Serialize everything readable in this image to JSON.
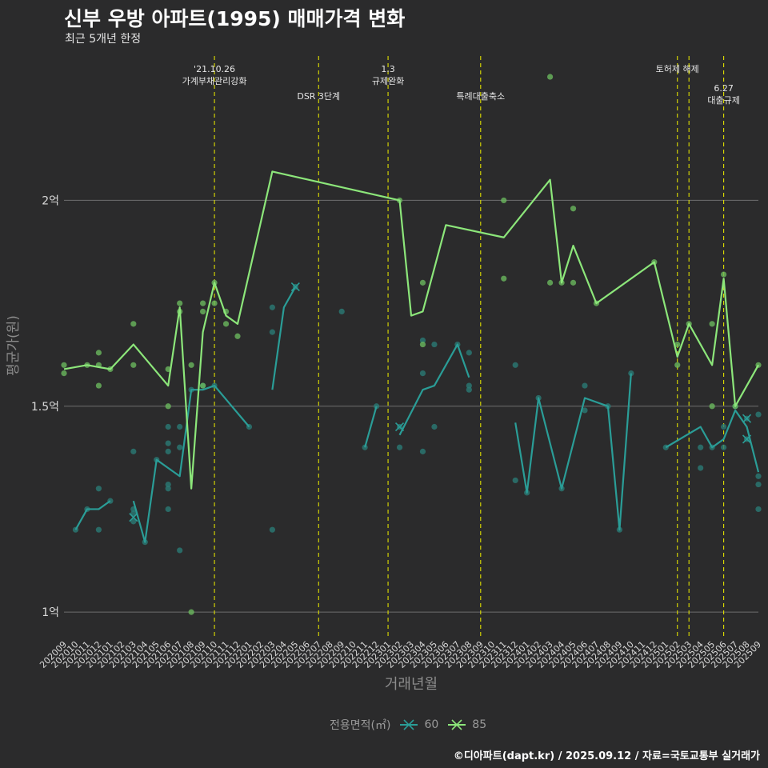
{
  "title": "신부 우방 아파트(1995) 매매가격 변화",
  "subtitle": "최근 5개년 한정",
  "caption": "©디아파트(dapt.kr) / 2025.09.12 / 자료=국토교통부 실거래가",
  "colors": {
    "background": "#2b2b2c",
    "grid": "#6e6e6e",
    "event_line": "#e0e000",
    "s60": "#2a9d97",
    "s60_point": "#2a7a76",
    "s85": "#8ce67a",
    "s85_point": "#6ab85e",
    "axis_text": "#d9d9d9",
    "axis_title": "#8c8c8c"
  },
  "chart_data": {
    "type": "line",
    "xlabel": "거래년월",
    "ylabel": "평균가(원)",
    "ylim": [
      0.94,
      2.37
    ],
    "y_ticks": [
      {
        "value": 1.0,
        "label": "1억"
      },
      {
        "value": 1.5,
        "label": "1.5억"
      },
      {
        "value": 2.0,
        "label": "2억"
      }
    ],
    "grid": "horizontal",
    "legend_position": "bottom",
    "legend_title": "전용면적(㎡)",
    "categories": [
      "202009",
      "202010",
      "202011",
      "202012",
      "202101",
      "202102",
      "202103",
      "202104",
      "202105",
      "202106",
      "202107",
      "202108",
      "202109",
      "202110",
      "202111",
      "202112",
      "202201",
      "202202",
      "202203",
      "202204",
      "202205",
      "202206",
      "202207",
      "202208",
      "202209",
      "202210",
      "202211",
      "202212",
      "202301",
      "202302",
      "202303",
      "202304",
      "202305",
      "202306",
      "202307",
      "202308",
      "202309",
      "202310",
      "202311",
      "202312",
      "202401",
      "202402",
      "202403",
      "202404",
      "202405",
      "202406",
      "202407",
      "202408",
      "202409",
      "202410",
      "202411",
      "202412",
      "202501",
      "202502",
      "202503",
      "202504",
      "202505",
      "202506",
      "202507",
      "202508",
      "202509"
    ],
    "events": [
      {
        "x": "202110",
        "label": "'21.10.26\n가계부채관리강화",
        "row": 0
      },
      {
        "x": "202207",
        "label": "DSR 3단계",
        "row": 1
      },
      {
        "x": "202301",
        "label": "1.3\n규제완화",
        "row": 0
      },
      {
        "x": "202309",
        "label": "특례대출축소",
        "row": 1
      },
      {
        "x": "202502",
        "label": "토허제 해제",
        "row": 0
      },
      {
        "x": "202503",
        "label": "",
        "row": 0
      },
      {
        "x": "202506",
        "label": "6.27\n대출규제",
        "row": 2
      }
    ],
    "series": [
      {
        "name": "60",
        "line": [
          [
            "202010",
            1.2
          ],
          [
            "202011",
            1.25
          ],
          [
            "202012",
            1.25
          ],
          [
            "202101",
            1.27
          ],
          null,
          [
            "202103",
            1.27
          ],
          [
            "202104",
            1.17
          ],
          [
            "202105",
            1.37
          ],
          [
            "202106",
            1.35
          ],
          [
            "202107",
            1.33
          ],
          [
            "202108",
            1.54
          ],
          [
            "202109",
            1.54
          ],
          [
            "202110",
            1.55
          ],
          [
            "202201",
            1.45
          ],
          null,
          [
            "202203",
            1.54
          ],
          [
            "202204",
            1.74
          ],
          [
            "202205",
            1.79
          ],
          null,
          [
            "202211",
            1.4
          ],
          [
            "202212",
            1.5
          ],
          null,
          [
            "202302",
            1.43
          ],
          [
            "202304",
            1.54
          ],
          [
            "202305",
            1.55
          ],
          [
            "202307",
            1.65
          ],
          [
            "202308",
            1.57
          ],
          null,
          [
            "202312",
            1.46
          ],
          [
            "202401",
            1.29
          ],
          [
            "202402",
            1.52
          ],
          [
            "202404",
            1.3
          ],
          [
            "202406",
            1.52
          ],
          [
            "202408",
            1.5
          ],
          [
            "202409",
            1.2
          ],
          [
            "202410",
            1.58
          ],
          null,
          [
            "202501",
            1.4
          ],
          [
            "202504",
            1.45
          ],
          [
            "202505",
            1.4
          ],
          [
            "202506",
            1.42
          ],
          [
            "202507",
            1.49
          ],
          [
            "202508",
            1.45
          ],
          [
            "202509",
            1.34
          ]
        ],
        "points": [
          [
            "202010",
            1.2
          ],
          [
            "202011",
            1.25
          ],
          [
            "202012",
            1.3
          ],
          [
            "202012",
            1.2
          ],
          [
            "202101",
            1.27
          ],
          [
            "202103",
            1.25
          ],
          [
            "202103",
            1.22
          ],
          [
            "202103",
            1.24
          ],
          [
            "202103",
            1.39
          ],
          [
            "202104",
            1.17
          ],
          [
            "202105",
            1.37
          ],
          [
            "202106",
            1.41
          ],
          [
            "202106",
            1.39
          ],
          [
            "202106",
            1.45
          ],
          [
            "202106",
            1.31
          ],
          [
            "202106",
            1.3
          ],
          [
            "202106",
            1.25
          ],
          [
            "202107",
            1.45
          ],
          [
            "202107",
            1.4
          ],
          [
            "202107",
            1.15
          ],
          [
            "202108",
            1.54
          ],
          [
            "202109",
            1.55
          ],
          [
            "202110",
            1.55
          ],
          [
            "202201",
            1.45
          ],
          [
            "202203",
            1.74
          ],
          [
            "202203",
            1.68
          ],
          [
            "202203",
            1.2
          ],
          [
            "202205",
            1.79
          ],
          [
            "202209",
            1.73
          ],
          [
            "202211",
            1.4
          ],
          [
            "202212",
            1.5
          ],
          [
            "202302",
            1.45
          ],
          [
            "202302",
            1.4
          ],
          [
            "202304",
            1.58
          ],
          [
            "202304",
            1.66
          ],
          [
            "202304",
            1.39
          ],
          [
            "202305",
            1.45
          ],
          [
            "202305",
            1.65
          ],
          [
            "202307",
            1.65
          ],
          [
            "202308",
            1.63
          ],
          [
            "202308",
            1.55
          ],
          [
            "202308",
            1.54
          ],
          [
            "202312",
            1.6
          ],
          [
            "202312",
            1.32
          ],
          [
            "202401",
            1.29
          ],
          [
            "202402",
            1.52
          ],
          [
            "202404",
            1.3
          ],
          [
            "202406",
            1.49
          ],
          [
            "202406",
            1.55
          ],
          [
            "202408",
            1.5
          ],
          [
            "202409",
            1.2
          ],
          [
            "202410",
            1.58
          ],
          [
            "202501",
            1.4
          ],
          [
            "202504",
            1.35
          ],
          [
            "202504",
            1.4
          ],
          [
            "202505",
            1.4
          ],
          [
            "202506",
            1.45
          ],
          [
            "202506",
            1.4
          ],
          [
            "202507",
            1.5
          ],
          [
            "202508",
            1.47
          ],
          [
            "202508",
            1.42
          ],
          [
            "202509",
            1.48
          ],
          [
            "202509",
            1.33
          ],
          [
            "202509",
            1.31
          ],
          [
            "202509",
            1.25
          ]
        ],
        "markers": [
          [
            "202103",
            1.23
          ],
          [
            "202205",
            1.79
          ],
          [
            "202302",
            1.45
          ],
          [
            "202508",
            1.47
          ],
          [
            "202508",
            1.42
          ]
        ]
      },
      {
        "name": "85",
        "line": [
          [
            "202009",
            1.59
          ],
          [
            "202011",
            1.6
          ],
          [
            "202101",
            1.59
          ],
          [
            "202103",
            1.65
          ],
          [
            "202106",
            1.55
          ],
          [
            "202107",
            1.74
          ],
          [
            "202108",
            1.3
          ],
          [
            "202109",
            1.68
          ],
          [
            "202110",
            1.8
          ],
          [
            "202111",
            1.72
          ],
          [
            "202112",
            1.7
          ],
          [
            "202203",
            2.07
          ],
          [
            "202302",
            2.0
          ],
          [
            "202303",
            1.72
          ],
          [
            "202304",
            1.73
          ],
          [
            "202306",
            1.94
          ],
          [
            "202311",
            1.91
          ],
          [
            "202403",
            2.05
          ],
          [
            "202404",
            1.8
          ],
          [
            "202405",
            1.89
          ],
          [
            "202407",
            1.75
          ],
          [
            "202412",
            1.85
          ],
          [
            "202502",
            1.62
          ],
          [
            "202503",
            1.7
          ],
          [
            "202505",
            1.6
          ],
          [
            "202506",
            1.81
          ],
          [
            "202507",
            1.5
          ],
          [
            "202509",
            1.6
          ]
        ],
        "points": [
          [
            "202009",
            1.6
          ],
          [
            "202009",
            1.58
          ],
          [
            "202011",
            1.6
          ],
          [
            "202012",
            1.63
          ],
          [
            "202012",
            1.6
          ],
          [
            "202012",
            1.55
          ],
          [
            "202101",
            1.59
          ],
          [
            "202103",
            1.7
          ],
          [
            "202103",
            1.6
          ],
          [
            "202106",
            1.59
          ],
          [
            "202106",
            1.5
          ],
          [
            "202107",
            1.75
          ],
          [
            "202107",
            1.73
          ],
          [
            "202108",
            1.6
          ],
          [
            "202108",
            1.0
          ],
          [
            "202109",
            1.75
          ],
          [
            "202109",
            1.73
          ],
          [
            "202109",
            1.55
          ],
          [
            "202110",
            1.8
          ],
          [
            "202110",
            1.75
          ],
          [
            "202111",
            1.73
          ],
          [
            "202111",
            1.7
          ],
          [
            "202112",
            1.67
          ],
          [
            "202302",
            2.0
          ],
          [
            "202304",
            1.8
          ],
          [
            "202304",
            1.65
          ],
          [
            "202311",
            2.0
          ],
          [
            "202311",
            1.81
          ],
          [
            "202403",
            2.3
          ],
          [
            "202403",
            1.8
          ],
          [
            "202404",
            1.8
          ],
          [
            "202405",
            1.98
          ],
          [
            "202405",
            1.8
          ],
          [
            "202407",
            1.75
          ],
          [
            "202412",
            1.85
          ],
          [
            "202502",
            1.65
          ],
          [
            "202502",
            1.6
          ],
          [
            "202503",
            1.7
          ],
          [
            "202505",
            1.7
          ],
          [
            "202505",
            1.5
          ],
          [
            "202506",
            1.82
          ],
          [
            "202507",
            1.5
          ],
          [
            "202509",
            1.6
          ]
        ],
        "markers": []
      }
    ]
  }
}
